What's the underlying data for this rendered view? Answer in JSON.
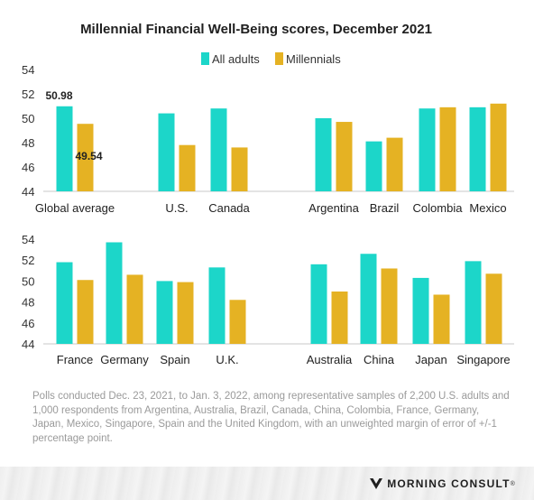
{
  "chart_data": {
    "type": "bar",
    "title": "Millennial Financial Well-Being scores, December 2021",
    "legend": {
      "placement": "top-center",
      "entries": [
        {
          "name": "All adults",
          "color": "#1cd6c9"
        },
        {
          "name": "Millennials",
          "color": "#e5b223"
        }
      ]
    },
    "y_ticks": [
      44,
      46,
      48,
      50,
      52,
      54
    ],
    "ylim": [
      44,
      54
    ],
    "panels": [
      {
        "categories": [
          "Global average",
          "U.S.",
          "Canada",
          "Argentina",
          "Brazil",
          "Colombia",
          "Mexico"
        ],
        "series": [
          {
            "name": "All adults",
            "values": [
              50.98,
              50.4,
              50.8,
              50.0,
              48.1,
              50.8,
              50.9
            ]
          },
          {
            "name": "Millennials",
            "values": [
              49.54,
              47.8,
              47.6,
              49.7,
              48.4,
              50.9,
              51.2
            ]
          }
        ],
        "data_labels": [
          {
            "category": "Global average",
            "series": "All adults",
            "text": "50.98"
          },
          {
            "category": "Global average",
            "series": "Millennials",
            "text": "49.54"
          }
        ]
      },
      {
        "categories": [
          "France",
          "Germany",
          "Spain",
          "U.K.",
          "Australia",
          "China",
          "Japan",
          "Singapore"
        ],
        "series": [
          {
            "name": "All adults",
            "values": [
              51.8,
              53.7,
              50.0,
              51.3,
              51.6,
              52.6,
              50.3,
              51.9
            ]
          },
          {
            "name": "Millennials",
            "values": [
              50.1,
              50.6,
              49.9,
              48.2,
              49.0,
              51.2,
              48.7,
              50.7
            ]
          }
        ],
        "data_labels": []
      }
    ],
    "grid": false
  },
  "footnote": "Polls conducted Dec. 23, 2021, to Jan. 3, 2022, among representative samples of 2,200 U.S. adults and 1,000 respondents from Argentina, Australia, Brazil, Canada, China, Colombia, France, Germany, Japan, Mexico, Singapore, Spain and the United Kingdom, with an unweighted margin of error of +/-1 percentage point.",
  "brand": {
    "name": "MORNING CONSULT",
    "registered": "®",
    "icon": "morning-consult-logo-icon"
  }
}
